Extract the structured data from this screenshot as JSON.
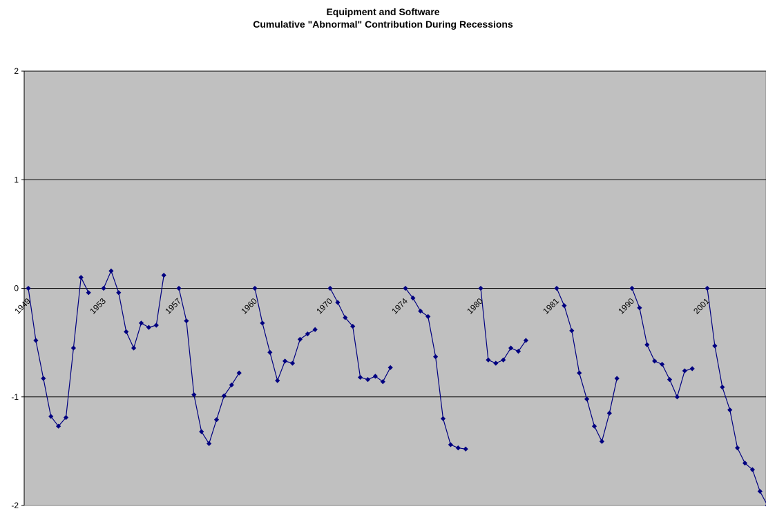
{
  "chart_data": {
    "type": "line",
    "title": "Equipment and Software",
    "subtitle": "Cumulative \"Abnormal\" Contribution During Recessions",
    "xlabel": "",
    "ylabel": "",
    "ylim": [
      -2,
      2
    ],
    "yticks": [
      2,
      1,
      0,
      -1,
      -2
    ],
    "grid": true,
    "legend": "none",
    "colors": {
      "plot_bg": "#c0c0c0",
      "line": "#000080",
      "marker": "#000080",
      "grid": "#000000"
    },
    "series": [
      {
        "label": "1949",
        "values": [
          0,
          -0.48,
          -0.83,
          -1.18,
          -1.27,
          -1.19,
          -0.55,
          0.1,
          -0.04
        ]
      },
      {
        "label": "1953",
        "values": [
          0,
          0.16,
          -0.04,
          -0.4,
          -0.55,
          -0.32,
          -0.36,
          -0.34,
          0.12
        ]
      },
      {
        "label": "1957",
        "values": [
          0,
          -0.3,
          -0.98,
          -1.32,
          -1.43,
          -1.21,
          -0.99,
          -0.89,
          -0.78
        ]
      },
      {
        "label": "1960",
        "values": [
          0,
          -0.32,
          -0.59,
          -0.85,
          -0.67,
          -0.69,
          -0.47,
          -0.42,
          -0.38
        ]
      },
      {
        "label": "1970",
        "values": [
          0,
          -0.13,
          -0.27,
          -0.35,
          -0.82,
          -0.84,
          -0.81,
          -0.86,
          -0.73
        ]
      },
      {
        "label": "1974",
        "values": [
          0,
          -0.09,
          -0.21,
          -0.26,
          -0.63,
          -1.2,
          -1.44,
          -1.47,
          -1.48
        ]
      },
      {
        "label": "1980",
        "values": [
          0,
          -0.66,
          -0.69,
          -0.66,
          -0.55,
          -0.58,
          -0.48
        ]
      },
      {
        "label": "1981",
        "values": [
          0,
          -0.16,
          -0.39,
          -0.78,
          -1.02,
          -1.27,
          -1.41,
          -1.15,
          -0.83
        ]
      },
      {
        "label": "1990",
        "values": [
          0,
          -0.18,
          -0.52,
          -0.67,
          -0.7,
          -0.84,
          -1.0,
          -0.76,
          -0.74
        ]
      },
      {
        "label": "2001",
        "values": [
          0,
          -0.53,
          -0.91,
          -1.12,
          -1.47,
          -1.61,
          -1.67,
          -1.87,
          -2.0
        ]
      }
    ]
  }
}
